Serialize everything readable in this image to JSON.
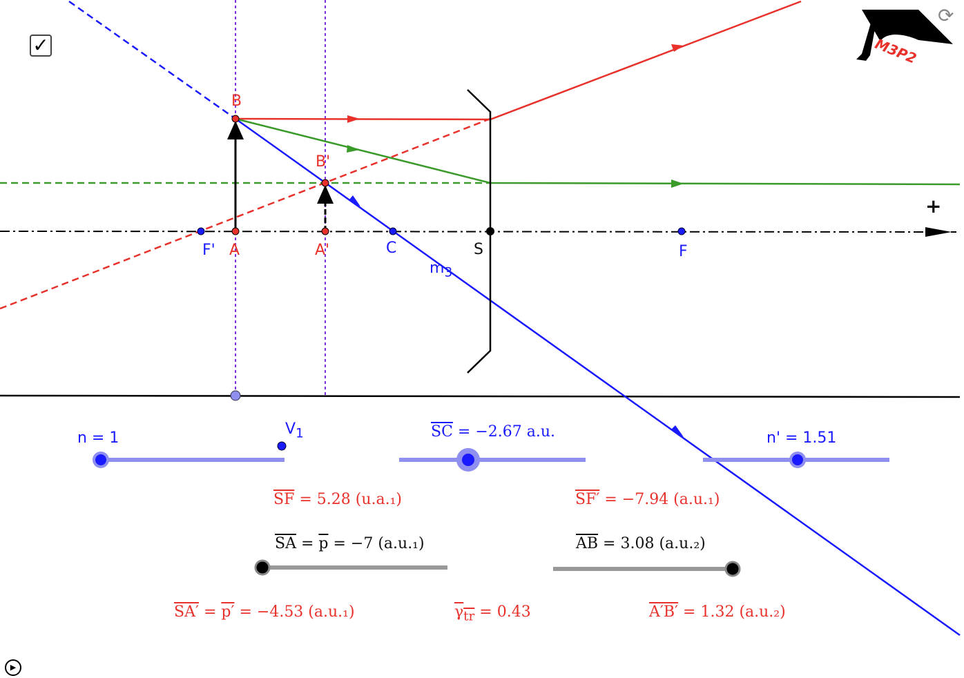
{
  "controls": {
    "checkbox_checked": true,
    "logo_text": "M3P2"
  },
  "points": {
    "B": "B",
    "B_prime": "B'",
    "F_prime": "F'",
    "A": "A",
    "A_prime": "A'",
    "C": "C",
    "S": "S",
    "F": "F",
    "m3": "m",
    "m3_sub": "3",
    "plus": "+",
    "V1": "V",
    "V1_sub": "1"
  },
  "sliders": {
    "n": {
      "label": "n = 1",
      "value": 1
    },
    "SC": {
      "label_over": "SC",
      "label_rest": " = −2.67 a.u.",
      "value": -2.67
    },
    "n_prime": {
      "label": "n' = 1.51",
      "value": 1.51
    },
    "SA": {
      "label_over": "SA",
      "label_rest": " = ",
      "p_over": "p",
      "label_tail": " = −7 (a.u.₁)",
      "value": -7
    },
    "AB": {
      "label_over": "AB",
      "label_rest": " =  3.08 (a.u.₂)",
      "value": 3.08
    }
  },
  "results": {
    "SF": {
      "over": "SF",
      "rest": " = 5.28 (u.a.₁)"
    },
    "SF_prime": {
      "over": "SF′",
      "rest": " = −7.94 (a.u.₁)"
    },
    "SA_prime": {
      "over": "SA′",
      "mid": " = ",
      "p_over": "p′",
      "rest": " = −4.53 (a.u.₁)"
    },
    "gamma": {
      "over": "γ",
      "sub": "tr",
      "rest": " = 0.43"
    },
    "AB_prime": {
      "over": "A′B′",
      "rest": " = 1.32 (a.u.₂)"
    }
  },
  "colors": {
    "red": "#e8312a",
    "blue": "#1a1aff",
    "green": "#3a9a2a",
    "purple": "#7b2fe0",
    "slider": "#8f8ff0"
  }
}
